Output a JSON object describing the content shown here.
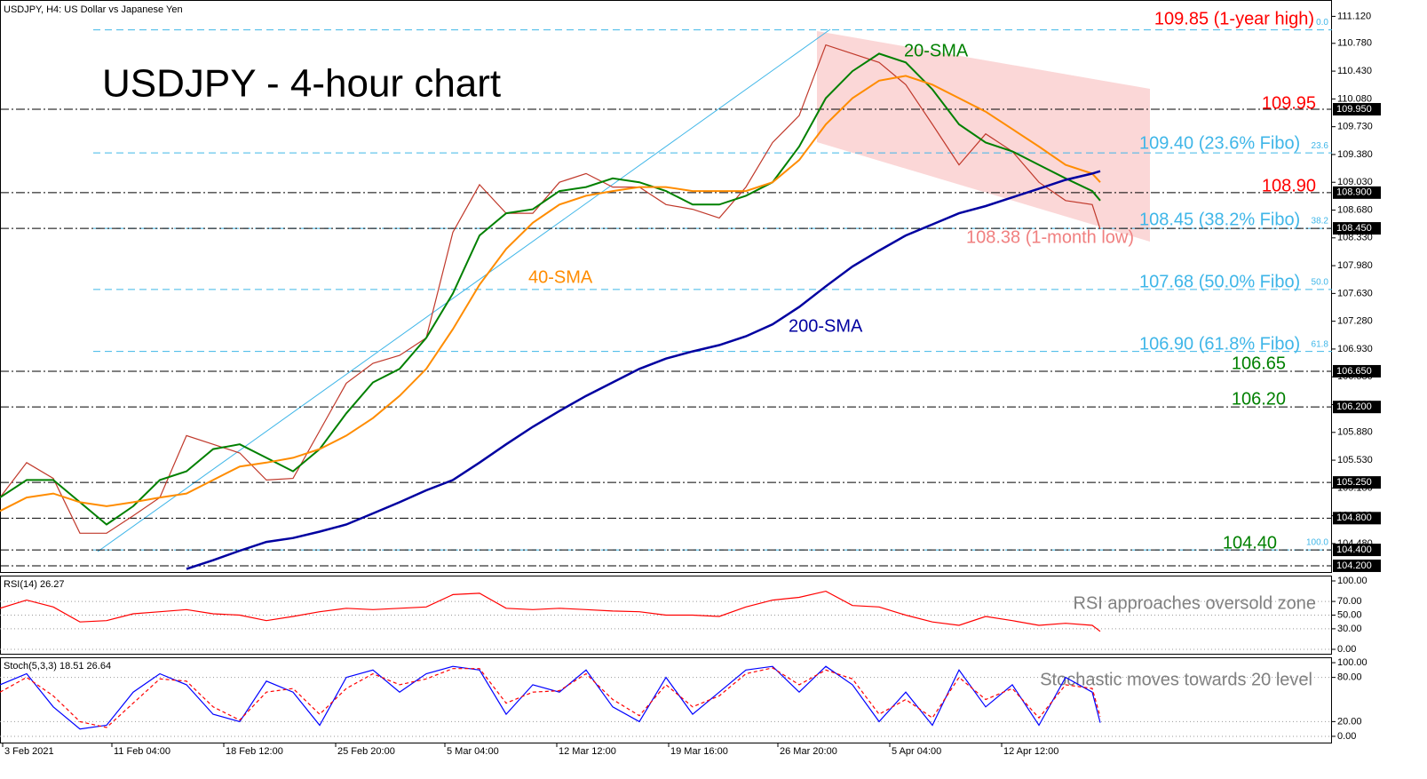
{
  "chart_data": [
    {
      "type": "line",
      "title": "USDJPY - 4-hour chart",
      "subtitle": "USDJPY, H4:  US Dollar vs Japanese Yen",
      "xlim": [
        0,
        500
      ],
      "ylim": [
        104.11,
        111.27
      ],
      "xticks": [
        {
          "value": 1,
          "label": "3 Feb 2021"
        },
        {
          "value": 42,
          "label": "11 Feb 04:00"
        },
        {
          "value": 84,
          "label": "18 Feb 12:00"
        },
        {
          "value": 126,
          "label": "25 Feb 20:00"
        },
        {
          "value": 167,
          "label": "5 Mar 04:00"
        },
        {
          "value": 209,
          "label": "12 Mar 12:00"
        },
        {
          "value": 251,
          "label": "19 Mar 16:00"
        },
        {
          "value": 292,
          "label": "26 Mar 20:00"
        },
        {
          "value": 334,
          "label": "5 Apr 04:00"
        },
        {
          "value": 376,
          "label": "12 Apr 12:00"
        }
      ],
      "yticks": [
        {
          "value": 111.12,
          "label": "111.120"
        },
        {
          "value": 110.78,
          "label": "110.780"
        },
        {
          "value": 110.43,
          "label": "110.430"
        },
        {
          "value": 110.08,
          "label": "110.080"
        },
        {
          "value": 109.73,
          "label": "109.730"
        },
        {
          "value": 109.38,
          "label": "109.380"
        },
        {
          "value": 109.03,
          "label": "109.030"
        },
        {
          "value": 108.68,
          "label": "108.680"
        },
        {
          "value": 108.33,
          "label": "108.330"
        },
        {
          "value": 107.98,
          "label": "107.980"
        },
        {
          "value": 107.63,
          "label": "107.630"
        },
        {
          "value": 107.28,
          "label": "107.280"
        },
        {
          "value": 106.93,
          "label": "106.930"
        },
        {
          "value": 106.58,
          "label": "106.580"
        },
        {
          "value": 106.23,
          "label": "106.230"
        },
        {
          "value": 105.88,
          "label": "105.880"
        },
        {
          "value": 105.53,
          "label": "105.530"
        },
        {
          "value": 105.18,
          "label": "105.180"
        },
        {
          "value": 104.83,
          "label": "104.830"
        },
        {
          "value": 104.48,
          "label": "104.480"
        }
      ],
      "levels": [
        {
          "value": 109.95,
          "label": "109.950"
        },
        {
          "value": 108.9,
          "label": "108.900"
        },
        {
          "value": 108.45,
          "label": "108.450"
        },
        {
          "value": 106.65,
          "label": "106.650"
        },
        {
          "value": 106.2,
          "label": "106.200"
        },
        {
          "value": 105.25,
          "label": "105.250"
        },
        {
          "value": 104.8,
          "label": "104.800"
        },
        {
          "value": 104.4,
          "label": "104.400"
        },
        {
          "value": 104.2,
          "label": "104.200"
        }
      ],
      "fibo": [
        {
          "ratio": "0.0",
          "value": 110.95
        },
        {
          "ratio": "23.6",
          "value": 109.4
        },
        {
          "ratio": "38.2",
          "value": 108.45
        },
        {
          "ratio": "50.0",
          "value": 107.68
        },
        {
          "ratio": "61.8",
          "value": 106.9
        },
        {
          "ratio": "100.0",
          "value": 104.4
        }
      ],
      "annotations": [
        {
          "text": "109.85 (1-year high)",
          "color": "#ff0000"
        },
        {
          "text": "109.95",
          "color": "#ff0000"
        },
        {
          "text": "109.40 (23.6% Fibo)",
          "color": "#3fb6e8"
        },
        {
          "text": "108.90",
          "color": "#ff0000"
        },
        {
          "text": "108.45 (38.2% Fibo)",
          "color": "#3fb6e8"
        },
        {
          "text": "108.38 (1-month low)",
          "color": "#f08080"
        },
        {
          "text": "107.68 (50.0% Fibo)",
          "color": "#3fb6e8"
        },
        {
          "text": "106.90 (61.8% Fibo)",
          "color": "#3fb6e8"
        },
        {
          "text": "106.65",
          "color": "#008000"
        },
        {
          "text": "106.20",
          "color": "#008000"
        },
        {
          "text": "104.40",
          "color": "#008000"
        }
      ],
      "x": [
        0,
        10,
        20,
        30,
        40,
        50,
        60,
        70,
        80,
        90,
        100,
        110,
        120,
        130,
        140,
        150,
        160,
        170,
        180,
        190,
        200,
        210,
        220,
        230,
        240,
        250,
        260,
        270,
        280,
        290,
        300,
        310,
        320,
        330,
        340,
        350,
        360,
        370,
        380,
        390,
        400,
        410,
        413
      ],
      "series": [
        {
          "color": "#c0392b",
          "values": [
            105.06,
            105.5,
            105.3,
            104.61,
            104.61,
            104.83,
            105.06,
            105.84,
            105.73,
            105.62,
            105.28,
            105.3,
            105.9,
            106.5,
            106.75,
            106.85,
            107.07,
            108.4,
            109.0,
            108.64,
            108.64,
            109.03,
            109.14,
            108.97,
            108.97,
            108.75,
            108.69,
            108.58,
            108.97,
            109.53,
            109.87,
            110.76,
            110.65,
            110.54,
            110.26,
            109.76,
            109.25,
            109.64,
            109.42,
            109.03,
            108.8,
            108.75,
            108.44
          ]
        },
        {
          "name": "20-SMA",
          "color": "#008000",
          "values": [
            105.06,
            105.28,
            105.28,
            105.0,
            104.72,
            104.95,
            105.28,
            105.39,
            105.67,
            105.73,
            105.56,
            105.39,
            105.67,
            106.12,
            106.51,
            106.68,
            107.07,
            107.63,
            108.36,
            108.64,
            108.69,
            108.92,
            108.97,
            109.08,
            109.03,
            108.92,
            108.75,
            108.75,
            108.86,
            109.03,
            109.48,
            110.09,
            110.43,
            110.65,
            110.54,
            110.2,
            109.76,
            109.53,
            109.42,
            109.25,
            109.08,
            108.92,
            108.8
          ]
        },
        {
          "name": "40-SMA",
          "color": "#ff8c00",
          "values": [
            104.89,
            105.06,
            105.11,
            105.0,
            104.95,
            105.0,
            105.06,
            105.11,
            105.28,
            105.45,
            105.5,
            105.56,
            105.67,
            105.84,
            106.06,
            106.34,
            106.68,
            107.18,
            107.74,
            108.19,
            108.52,
            108.75,
            108.86,
            108.92,
            108.97,
            108.97,
            108.92,
            108.92,
            108.92,
            109.03,
            109.31,
            109.76,
            110.09,
            110.31,
            110.37,
            110.26,
            110.09,
            109.92,
            109.7,
            109.48,
            109.25,
            109.14,
            109.03
          ]
        },
        {
          "name": "200-SMA",
          "color": "#0000a0",
          "values": [
            null,
            null,
            null,
            null,
            null,
            null,
            null,
            104.16,
            104.27,
            104.39,
            104.5,
            104.55,
            104.63,
            104.72,
            104.86,
            105.0,
            105.15,
            105.28,
            105.5,
            105.73,
            105.95,
            106.15,
            106.34,
            106.51,
            106.68,
            106.81,
            106.9,
            106.98,
            107.09,
            107.24,
            107.46,
            107.72,
            107.97,
            108.17,
            108.36,
            108.5,
            108.64,
            108.73,
            108.84,
            108.95,
            109.06,
            109.14,
            109.17
          ]
        }
      ]
    },
    {
      "type": "line",
      "title": "RSI(14) 26.27",
      "annotation": "RSI approaches oversold zone",
      "xlim": [
        0,
        500
      ],
      "ylim": [
        -6.5,
        107.8
      ],
      "yticks": [
        {
          "value": 100,
          "label": "100.00"
        },
        {
          "value": 70,
          "label": "70.00"
        },
        {
          "value": 50,
          "label": "50.00"
        },
        {
          "value": 30,
          "label": "30.00"
        },
        {
          "value": 0,
          "label": "0.00"
        }
      ],
      "x": [
        0,
        10,
        20,
        30,
        40,
        50,
        60,
        70,
        80,
        90,
        100,
        110,
        120,
        130,
        140,
        150,
        160,
        170,
        180,
        190,
        200,
        210,
        220,
        230,
        240,
        250,
        260,
        270,
        280,
        290,
        300,
        310,
        320,
        330,
        340,
        350,
        360,
        370,
        380,
        390,
        400,
        410,
        413
      ],
      "series": [
        {
          "color": "#ff0000",
          "values": [
            60,
            72,
            62,
            40,
            42,
            52,
            55,
            58,
            52,
            50,
            42,
            48,
            55,
            60,
            58,
            60,
            62,
            80,
            82,
            60,
            58,
            60,
            58,
            56,
            55,
            50,
            50,
            48,
            62,
            72,
            76,
            85,
            64,
            62,
            50,
            40,
            35,
            48,
            42,
            35,
            38,
            35,
            26.27
          ]
        }
      ]
    },
    {
      "type": "line",
      "title": "Stoch(5,3,3) 18.51 26.64",
      "annotation": "Stochastic moves towards 20 level",
      "xlim": [
        0,
        500
      ],
      "ylim": [
        -8.5,
        107.3
      ],
      "yticks": [
        {
          "value": 100,
          "label": "100.00"
        },
        {
          "value": 80,
          "label": "80.00"
        },
        {
          "value": 20,
          "label": "20.00"
        },
        {
          "value": 0,
          "label": "0.00"
        }
      ],
      "x": [
        0,
        10,
        20,
        30,
        40,
        50,
        60,
        70,
        80,
        90,
        100,
        110,
        120,
        130,
        140,
        150,
        160,
        170,
        180,
        190,
        200,
        210,
        220,
        230,
        240,
        250,
        260,
        270,
        280,
        290,
        300,
        310,
        320,
        330,
        340,
        350,
        360,
        370,
        380,
        390,
        400,
        410,
        413
      ],
      "series": [
        {
          "color": "#0000ff",
          "dashed": false,
          "values": [
            70,
            85,
            40,
            10,
            15,
            60,
            85,
            70,
            30,
            20,
            75,
            60,
            15,
            80,
            90,
            60,
            85,
            95,
            90,
            30,
            70,
            60,
            90,
            40,
            20,
            80,
            30,
            60,
            90,
            95,
            60,
            95,
            70,
            20,
            60,
            15,
            90,
            40,
            70,
            15,
            80,
            60,
            18.51
          ]
        },
        {
          "color": "#ff0000",
          "dashed": true,
          "values": [
            60,
            80,
            55,
            20,
            12,
            45,
            78,
            75,
            40,
            22,
            60,
            65,
            30,
            65,
            85,
            70,
            78,
            92,
            92,
            45,
            60,
            62,
            85,
            50,
            28,
            70,
            40,
            55,
            85,
            93,
            70,
            90,
            78,
            30,
            50,
            25,
            80,
            50,
            65,
            25,
            70,
            65,
            26.64
          ]
        }
      ]
    }
  ]
}
